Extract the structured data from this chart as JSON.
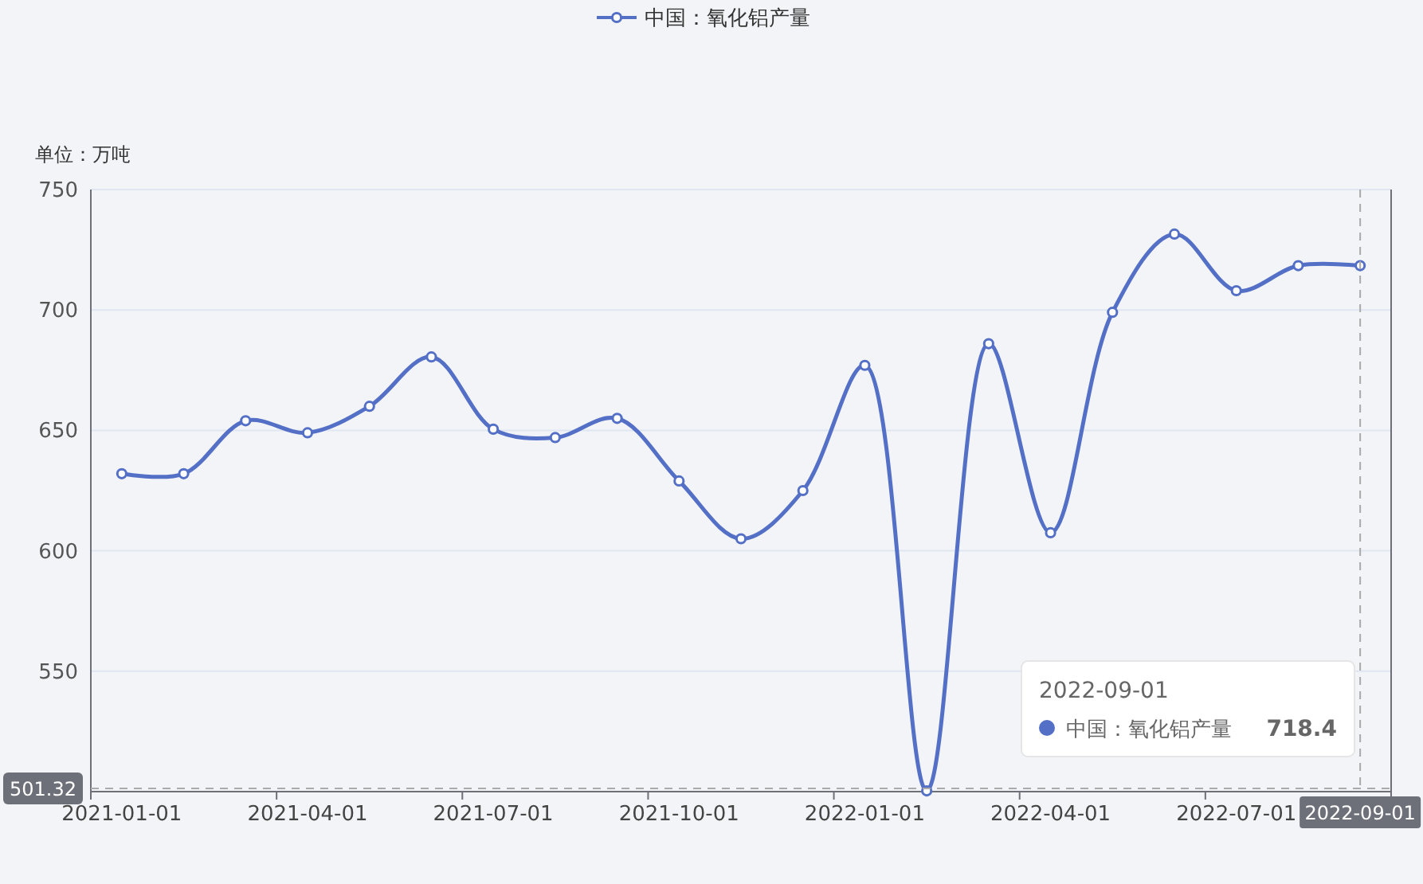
{
  "chart_data": {
    "type": "line",
    "ylabel": "单位：万吨",
    "categories": [
      "2021-01-01",
      null,
      null,
      "2021-04-01",
      null,
      null,
      "2021-07-01",
      null,
      null,
      "2021-10-01",
      null,
      null,
      "2022-01-01",
      null,
      null,
      "2022-04-01",
      null,
      null,
      "2022-07-01",
      null,
      "2022-09-01"
    ],
    "series": [
      {
        "name": "中国：氧化铝产量",
        "color": "#5470c6",
        "values": [
          632,
          632,
          654,
          649,
          660,
          680.5,
          650.5,
          647,
          655,
          629,
          605,
          625,
          677,
          500.3,
          686,
          607.5,
          699,
          731.5,
          708,
          718.4,
          718.4
        ]
      }
    ],
    "ylim": [
      500,
      750
    ],
    "yticks": [
      {
        "value": 500,
        "label": null
      },
      550,
      600,
      650,
      700,
      750
    ],
    "grid": "y",
    "legend": "top",
    "marker": "circle",
    "line_style": "solid",
    "ref_lines": [
      {
        "axis": "y",
        "value": 501.32,
        "label": "501.32",
        "line_style": "dashed",
        "color": "#aaaaaa"
      },
      {
        "axis": "x",
        "value": "2022-09-01",
        "label": null,
        "line_style": "dashed",
        "color": "#aaaaaa"
      }
    ],
    "annotations": [
      "2022-09-01",
      "中国：氧化铝产量",
      "718.4"
    ]
  }
}
